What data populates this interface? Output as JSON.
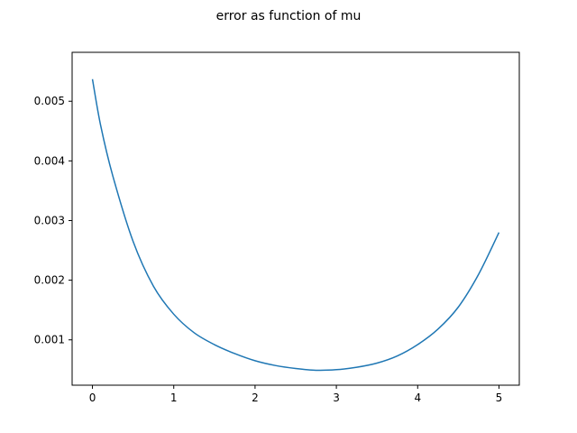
{
  "chart_data": {
    "type": "line",
    "title": "error as function of mu",
    "xlabel": "",
    "ylabel": "",
    "xlim": [
      -0.25,
      5.25
    ],
    "ylim": [
      0.00024,
      0.00582
    ],
    "xticks": [
      0,
      1,
      2,
      3,
      4,
      5
    ],
    "xtick_labels": [
      "0",
      "1",
      "2",
      "3",
      "4",
      "5"
    ],
    "yticks": [
      0.001,
      0.002,
      0.003,
      0.004,
      0.005
    ],
    "ytick_labels": [
      "0.001",
      "0.002",
      "0.003",
      "0.004",
      "0.005"
    ],
    "grid": false,
    "series": [
      {
        "color": "#1f77b4",
        "x": [
          0.0,
          0.1,
          0.25,
          0.5,
          0.75,
          1.0,
          1.25,
          1.5,
          1.75,
          2.0,
          2.25,
          2.5,
          2.75,
          3.0,
          3.25,
          3.5,
          3.75,
          4.0,
          4.25,
          4.5,
          4.75,
          5.0
        ],
        "y": [
          0.00537,
          0.0046,
          0.00375,
          0.00265,
          0.0019,
          0.00143,
          0.00112,
          0.00092,
          0.00077,
          0.00065,
          0.00057,
          0.00052,
          0.00049,
          0.0005,
          0.00054,
          0.00061,
          0.00073,
          0.00092,
          0.00118,
          0.00155,
          0.0021,
          0.0028
        ]
      }
    ]
  }
}
